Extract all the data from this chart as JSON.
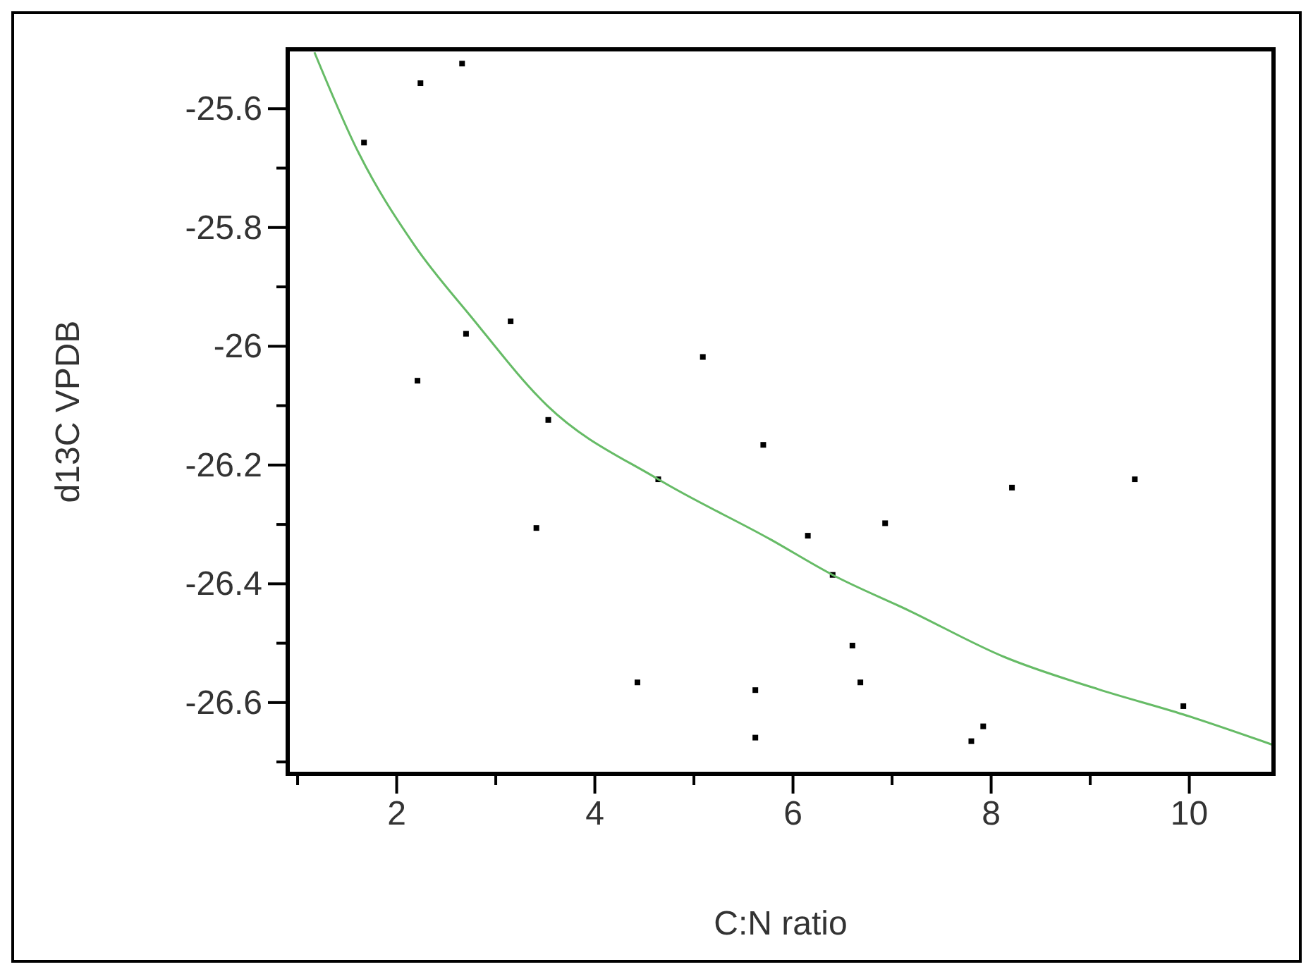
{
  "chart_data": {
    "type": "scatter",
    "xlabel": "C:N ratio",
    "ylabel": "d13C VPDB",
    "xlim": [
      0.9,
      10.85
    ],
    "ylim": [
      -26.72,
      -25.5
    ],
    "xticks": [
      {
        "value": 1,
        "label": null
      },
      2,
      {
        "value": 3,
        "label": null
      },
      4,
      {
        "value": 5,
        "label": null
      },
      6,
      {
        "value": 7,
        "label": null
      },
      8,
      {
        "value": 9,
        "label": null
      },
      10
    ],
    "yticks": [
      -25.6,
      {
        "value": -25.7,
        "label": null
      },
      -25.8,
      {
        "value": -25.9,
        "label": null
      },
      -26,
      {
        "value": -26.1,
        "label": null
      },
      -26.2,
      {
        "value": -26.3,
        "label": null
      },
      -26.4,
      {
        "value": -26.5,
        "label": null
      },
      -26.6,
      {
        "value": -26.7,
        "label": null
      }
    ],
    "grid": false,
    "series": [
      {
        "color": "#000000",
        "marker": "square",
        "x": [
          1.67,
          2.24,
          2.66,
          3.15,
          2.7,
          2.21,
          3.53,
          5.09,
          5.7,
          4.64,
          3.41,
          4.43,
          5.62,
          5.62,
          6.15,
          6.4,
          6.93,
          6.6,
          6.68,
          8.21,
          9.45,
          9.94,
          7.92,
          7.8
        ],
        "values": [
          -25.657,
          -25.557,
          -25.524,
          -25.958,
          -25.979,
          -26.058,
          -26.124,
          -26.018,
          -26.166,
          -26.224,
          -26.306,
          -26.566,
          -26.579,
          -26.659,
          -26.319,
          -26.385,
          -26.298,
          -26.504,
          -26.566,
          -26.238,
          -26.224,
          -26.606,
          -26.64,
          -26.665
        ]
      },
      {
        "type": "line",
        "color": "#66bb66",
        "line_style": "solid",
        "x": [
          1.17,
          1.6,
          2.18,
          2.75,
          3.52,
          4.64,
          5.77,
          6.4,
          7.17,
          8.13,
          9.09,
          9.94,
          10.84
        ],
        "values": [
          -25.505,
          -25.669,
          -25.83,
          -25.95,
          -26.1,
          -26.224,
          -26.325,
          -26.385,
          -26.445,
          -26.523,
          -26.578,
          -26.62,
          -26.671
        ]
      }
    ]
  }
}
